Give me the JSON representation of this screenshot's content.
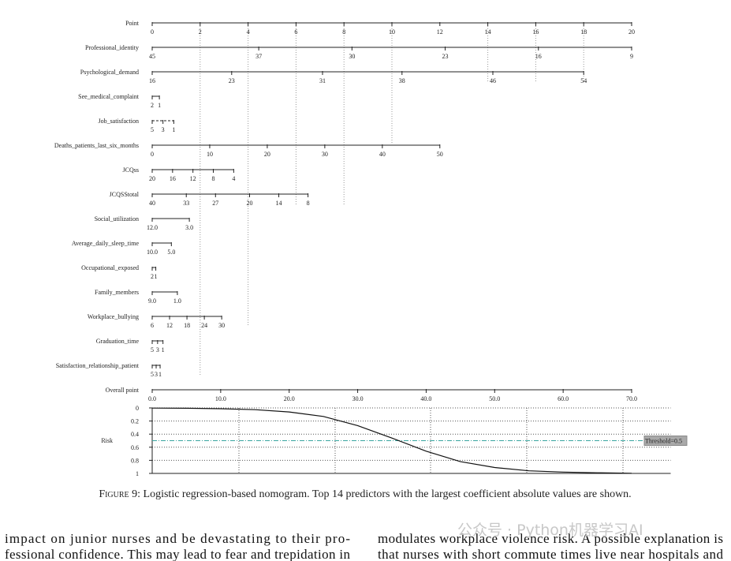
{
  "figure": {
    "rows": [
      {
        "label": "Point",
        "ticks": [
          0,
          2,
          4,
          6,
          8,
          10,
          12,
          14,
          16,
          18,
          20
        ],
        "points": [
          0,
          20
        ]
      },
      {
        "label": "Professional_identity",
        "ticks": [
          45,
          37,
          30,
          23,
          16,
          9
        ],
        "points": [
          0,
          20
        ]
      },
      {
        "label": "Psychological_demand",
        "ticks": [
          16,
          23,
          31,
          38,
          46,
          54
        ],
        "points": [
          0,
          18
        ]
      },
      {
        "label": "See_medical_complaint",
        "ticks": [
          2,
          1
        ],
        "points": [
          0,
          0.3
        ]
      },
      {
        "label": "Job_satisfaction",
        "ticks": [
          5,
          3,
          1
        ],
        "points": [
          0,
          0.9
        ],
        "dashed": true
      },
      {
        "label": "Deaths_patients_last_six_months",
        "ticks": [
          0,
          10,
          20,
          30,
          40,
          50
        ],
        "points": [
          0,
          12
        ]
      },
      {
        "label": "JCQss",
        "ticks": [
          20,
          16,
          12,
          8,
          4
        ],
        "points": [
          0,
          3.4
        ]
      },
      {
        "label": "JCQSStotal",
        "ticks": [
          40,
          33,
          27,
          20,
          14,
          8
        ],
        "points": [
          0,
          6.5
        ]
      },
      {
        "label": "Social_utilization",
        "ticks": [
          {
            "value": 12,
            "label": "12.0"
          },
          {
            "value": 3,
            "label": "3.0"
          }
        ],
        "points": [
          0,
          1.55
        ]
      },
      {
        "label": "Average_daily_sleep_time",
        "ticks": [
          {
            "value": 10,
            "label": "10.0"
          },
          {
            "value": 5,
            "label": "5.0"
          }
        ],
        "points": [
          0,
          0.8
        ]
      },
      {
        "label": "Occupational_exposed",
        "ticks": [
          2,
          1
        ],
        "points": [
          0,
          0.15
        ]
      },
      {
        "label": "Family_members",
        "ticks": [
          {
            "value": 9,
            "label": "9.0"
          },
          {
            "value": 1,
            "label": "1.0"
          }
        ],
        "points": [
          0,
          1.05
        ]
      },
      {
        "label": "Workplace_bullying",
        "ticks": [
          6,
          12,
          18,
          24,
          30
        ],
        "points": [
          0,
          2.9
        ]
      },
      {
        "label": "Graduation_time",
        "ticks": [
          5,
          3,
          1
        ],
        "points": [
          0,
          0.45
        ]
      },
      {
        "label": "Satisfaction_relationship_patient",
        "ticks": [
          5,
          3,
          1
        ],
        "points": [
          0,
          0.33
        ]
      }
    ],
    "overall": {
      "label": "Overall point",
      "ticks": [
        {
          "value": 0,
          "label": "0.0"
        },
        {
          "value": 10,
          "label": "10.0"
        },
        {
          "value": 20,
          "label": "20.0"
        },
        {
          "value": 30,
          "label": "30.0"
        },
        {
          "value": 40,
          "label": "40.0"
        },
        {
          "value": 50,
          "label": "50.0"
        },
        {
          "value": 60,
          "label": "60.0"
        },
        {
          "value": 70,
          "label": "70.0"
        }
      ],
      "range": [
        0,
        70
      ]
    },
    "risk": {
      "label": "Risk",
      "ylim": [
        0,
        1
      ],
      "yticks": [
        0,
        0.2,
        0.4,
        0.6,
        0.8,
        1
      ],
      "xlim": [
        0,
        75.7
      ],
      "x": [
        0,
        5,
        10,
        15,
        20,
        25,
        30,
        35,
        40,
        45,
        50,
        55,
        60,
        65,
        70
      ],
      "values": [
        0.002,
        0.005,
        0.012,
        0.027,
        0.062,
        0.13,
        0.27,
        0.46,
        0.66,
        0.82,
        0.91,
        0.96,
        0.98,
        0.99,
        0.997
      ],
      "threshold": {
        "value": 0.5,
        "label": "Threshold=0.5"
      }
    }
  },
  "caption": {
    "label": "Figure 9:",
    "text": " Logistic regression-based nomogram. Top 14 predictors with the largest coefficient absolute values are shown."
  },
  "body": {
    "left": [
      "impact on junior nurses and be devastating to their pro-",
      "fessional confidence. This may lead to fear and trepidation in"
    ],
    "right": [
      "modulates workplace violence risk. A possible explanation is",
      "that nurses with short commute times live near hospitals and"
    ]
  },
  "watermark": "公众号 · Python机器学习AI"
}
